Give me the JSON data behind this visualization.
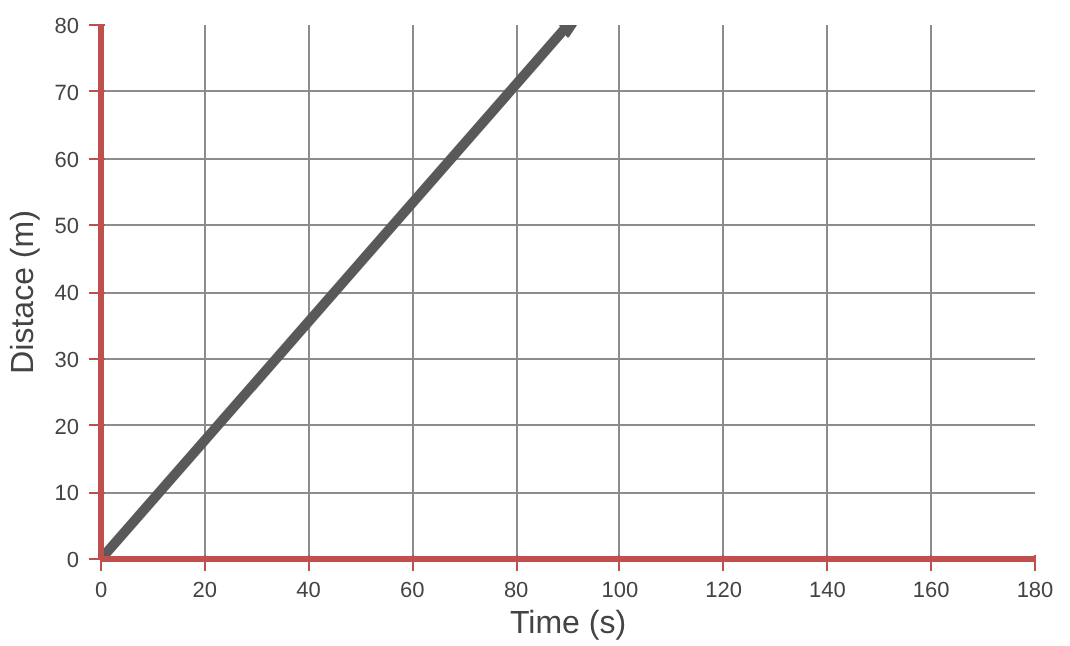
{
  "chart_data": {
    "type": "line",
    "xlabel": "Time (s)",
    "ylabel": "Distace (m)",
    "x": [
      0,
      90
    ],
    "series": [
      {
        "color": "#595959",
        "values": [
          0,
          80
        ]
      }
    ],
    "xlim": [
      0,
      180
    ],
    "ylim": [
      0,
      80
    ],
    "xticks": [
      0,
      20,
      40,
      60,
      80,
      100,
      120,
      140,
      160,
      180
    ],
    "yticks": [
      0,
      10,
      20,
      30,
      40,
      50,
      60,
      70,
      80
    ],
    "grid": true,
    "marker": "diamond",
    "line_style": "solid"
  }
}
